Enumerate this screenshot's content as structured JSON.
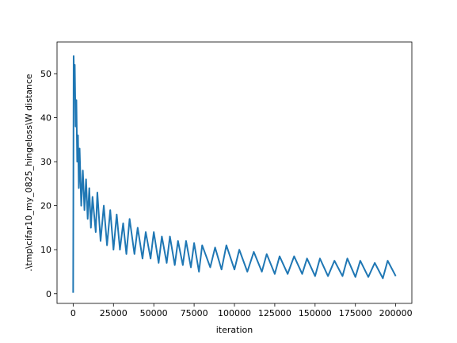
{
  "chart_data": {
    "type": "line",
    "xlabel": "iteration",
    "ylabel": ".\\tmp\\cifar10_my_0825_hingeloss\\W distance",
    "x": [
      0,
      300,
      600,
      1000,
      1500,
      2000,
      2500,
      3000,
      3500,
      4000,
      5000,
      6000,
      7000,
      8000,
      9000,
      10000,
      11000,
      12000,
      14000,
      15000,
      17000,
      19000,
      21000,
      23000,
      25000,
      27000,
      29000,
      31000,
      33000,
      35000,
      38000,
      40000,
      43000,
      45000,
      48000,
      50000,
      53000,
      55000,
      58000,
      60000,
      63000,
      65000,
      68000,
      70000,
      73000,
      75000,
      78000,
      80000,
      85000,
      88000,
      92000,
      95000,
      100000,
      103000,
      108000,
      112000,
      117000,
      120000,
      125000,
      128000,
      133000,
      137000,
      142000,
      145000,
      150000,
      153000,
      158000,
      162000,
      167000,
      170000,
      175000,
      178000,
      183000,
      187000,
      192000,
      195000,
      200000
    ],
    "series": [
      {
        "name": "W distance",
        "color": "#1f77b4",
        "values": [
          0.2,
          54,
          47,
          52,
          38,
          44,
          30,
          36,
          24,
          33,
          20,
          28,
          19,
          26,
          17,
          24,
          15,
          22,
          14,
          23,
          12,
          20,
          11,
          19,
          10,
          18,
          10,
          16,
          9,
          17,
          9,
          15,
          8,
          14,
          8,
          14,
          7,
          13,
          7,
          13,
          6.5,
          12,
          6.5,
          12,
          6,
          11.5,
          5,
          11,
          6,
          10.5,
          5.5,
          11,
          5.5,
          10,
          5,
          9.5,
          5,
          9,
          4.5,
          8.5,
          4.5,
          8.5,
          4.5,
          8,
          4,
          8,
          4,
          7.5,
          4,
          8,
          3.8,
          7.5,
          3.8,
          7,
          3.5,
          7.5,
          4
        ]
      }
    ],
    "xlim": [
      -10000,
      210000
    ],
    "ylim": [
      -2.2,
      57.2
    ],
    "xticks": [
      0,
      25000,
      50000,
      75000,
      100000,
      125000,
      150000,
      175000,
      200000
    ],
    "yticks": [
      0,
      10,
      20,
      30,
      40,
      50
    ]
  }
}
